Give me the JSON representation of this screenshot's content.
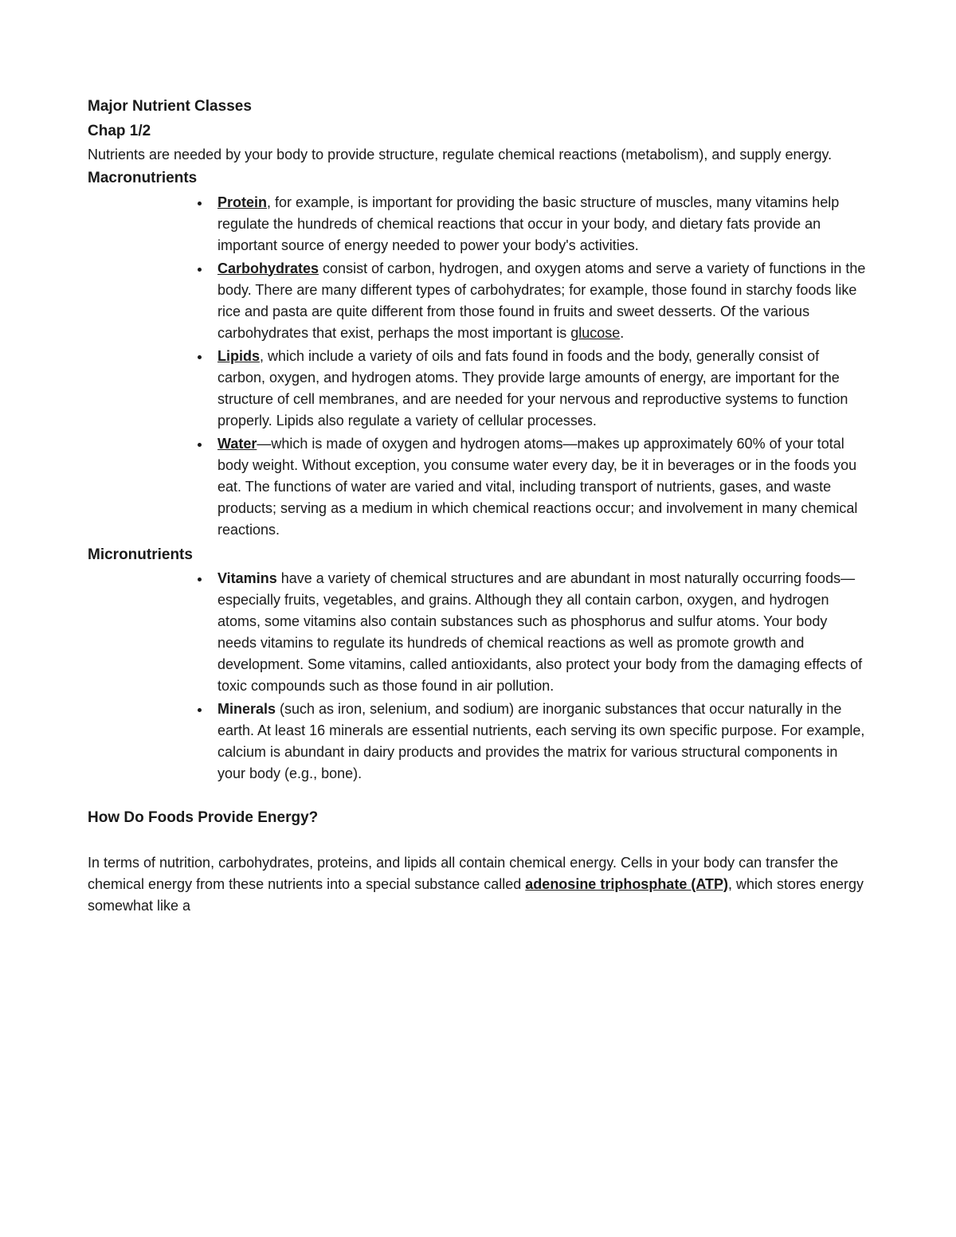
{
  "heading1": "Major Nutrient Classes",
  "heading2": "Chap 1/2",
  "intro": "Nutrients are needed by your body to provide structure, regulate chemical reactions (metabolism), and supply energy.",
  "macroHeading": "Macronutrients",
  "macro": {
    "proteinTerm": "Protein",
    "proteinText": ", for example, is important for providing the basic structure of muscles, many vitamins help regulate the hundreds of chemical reactions that occur in your body, and dietary fats provide an important source of energy needed to power your body's activities.",
    "carbsTerm": "Carbohydrates",
    "carbsText1": " consist of carbon, hydrogen, and oxygen atoms and serve a variety of functions in the body. There are many different types of carbohydrates; for example, those found in starchy foods like rice and pasta are quite different from those found in fruits and sweet desserts. Of the various carbohydrates that exist, perhaps the most important is ",
    "glucose": "glucose",
    "carbsText2": ".",
    "lipidsTerm": "Lipids",
    "lipidsText": ", which include a variety of oils and fats found in foods and the body, generally consist of carbon, oxygen, and hydrogen atoms. They provide large amounts of energy, are important for the structure of cell membranes, and are needed for your nervous and reproductive systems to function properly. Lipids also regulate a variety of cellular processes.",
    "waterTerm": "Water",
    "waterText": "—which is made of oxygen and hydrogen atoms—makes up approximately 60% of your total body weight. Without exception, you consume water every day, be it in beverages or in the foods you eat. The functions of water are varied and vital, including transport of nutrients, gases, and waste products; serving as a medium in which chemical reactions occur; and involvement in many chemical reactions."
  },
  "microHeading": "Micronutrients",
  "micro": {
    "vitaminsTerm": "Vitamins",
    "vitaminsText": " have a variety of chemical structures and are abundant in most naturally occurring foods—especially fruits, vegetables, and grains. Although they all contain carbon, oxygen, and hydrogen atoms, some vitamins also contain substances such as phosphorus and sulfur atoms. Your body needs vitamins to regulate its hundreds of chemical reactions as well as promote growth and development. Some vitamins, called antioxidants, also protect your body from the damaging effects of toxic compounds such as those found in air pollution.",
    "mineralsTerm": "Minerals",
    "mineralsText": " (such as iron, selenium, and sodium) are inorganic substances that occur naturally in the earth. At least 16 minerals are essential nutrients, each serving its own specific purpose. For example, calcium is abundant in dairy products and provides the matrix for various structural components in your body (e.g., bone)."
  },
  "energyHeading": "How Do Foods Provide Energy?",
  "energyText1": " In terms of nutrition, carbohydrates, proteins, and lipids all contain chemical energy. Cells in your body can transfer the chemical energy from these nutrients into a special substance called ",
  "atp": "adenosine triphosphate (ATP)",
  "energyText2": ", which stores energy somewhat like a"
}
